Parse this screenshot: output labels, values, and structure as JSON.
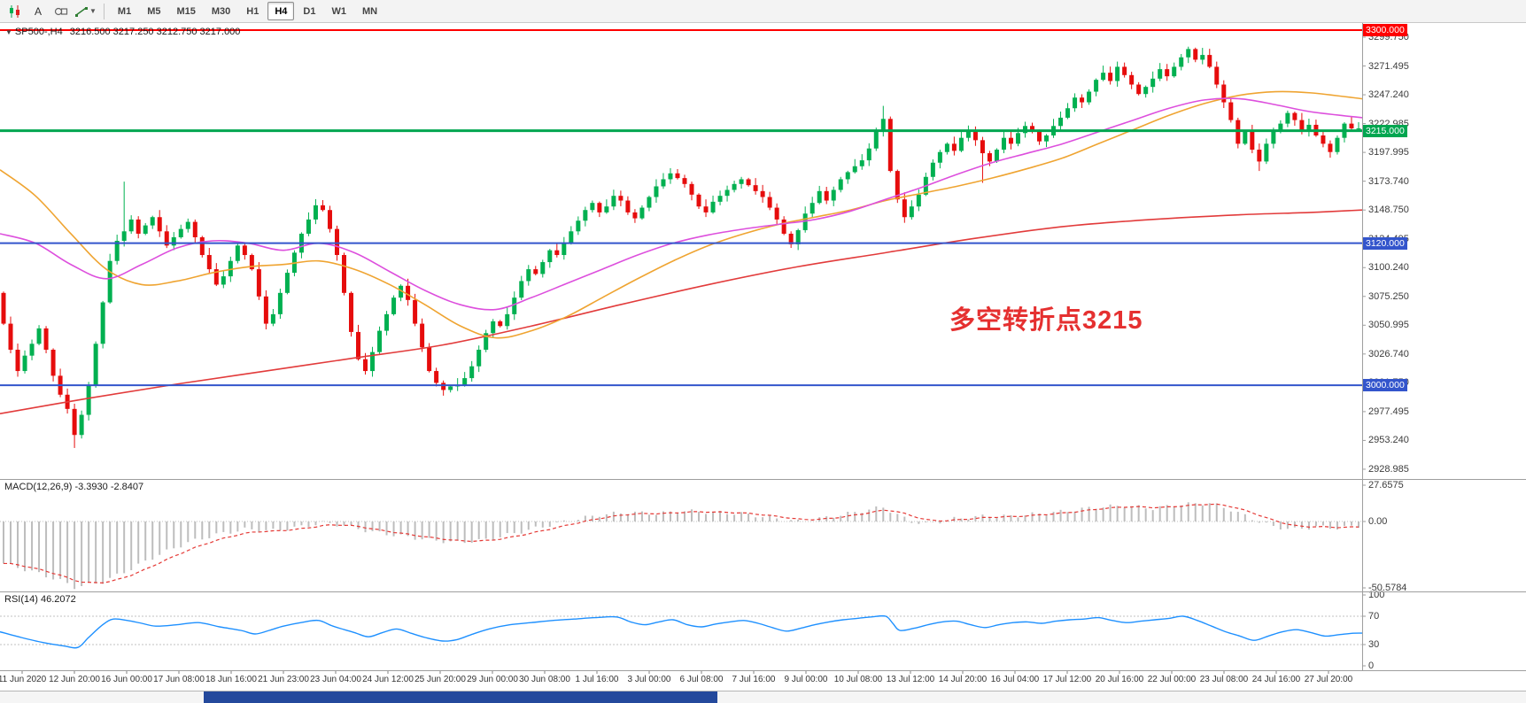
{
  "toolbar": {
    "text_tool_label": "A",
    "timeframes": [
      {
        "label": "M1",
        "active": false
      },
      {
        "label": "M5",
        "active": false
      },
      {
        "label": "M15",
        "active": false
      },
      {
        "label": "M30",
        "active": false
      },
      {
        "label": "H1",
        "active": false
      },
      {
        "label": "H4",
        "active": true
      },
      {
        "label": "D1",
        "active": false
      },
      {
        "label": "W1",
        "active": false
      },
      {
        "label": "MN",
        "active": false
      }
    ]
  },
  "chart": {
    "symbol": "SP500-,H4",
    "ohlc_text": "3216.500 3217.250 3212.750 3217.000",
    "annotation": "多空转折点3215",
    "hlines": [
      {
        "price": 3300,
        "label": "3300.000",
        "color": "#ff0000",
        "width": 2
      },
      {
        "price": 3215,
        "label": "3215.000",
        "color": "#00a650",
        "width": 3
      },
      {
        "price": 3120,
        "label": "3120.000",
        "color": "#3355cc",
        "width": 2
      },
      {
        "price": 3000,
        "label": "3000.000",
        "color": "#3355cc",
        "width": 2
      }
    ],
    "price_labels": [
      "3299.750",
      "3271.495",
      "3247.240",
      "3222.985",
      "3197.995",
      "3173.740",
      "3148.750",
      "3124.495",
      "3100.240",
      "3075.250",
      "3050.995",
      "3026.740",
      "3001.750",
      "2977.495",
      "2953.240",
      "2928.985"
    ],
    "time_labels": [
      "11 Jun 2020",
      "12 Jun 20:00",
      "16 Jun 00:00",
      "17 Jun 08:00",
      "18 Jun 16:00",
      "21 Jun 23:00",
      "23 Jun 04:00",
      "24 Jun 12:00",
      "25 Jun 20:00",
      "29 Jun 00:00",
      "30 Jun 08:00",
      "1 Jul 16:00",
      "3 Jul 00:00",
      "6 Jul 08:00",
      "7 Jul 16:00",
      "9 Jul 00:00",
      "10 Jul 08:00",
      "13 Jul 12:00",
      "14 Jul 20:00",
      "16 Jul 04:00",
      "17 Jul 12:00",
      "20 Jul 16:00",
      "22 Jul 00:00",
      "23 Jul 08:00",
      "24 Jul 16:00",
      "27 Jul 20:00"
    ]
  },
  "macd": {
    "header": "MACD(12,26,9) -3.3930 -2.8407",
    "labels": [
      "27.6575",
      "0.00",
      "-50.5784"
    ],
    "range": {
      "max": 27.6575,
      "min": -50.5784
    },
    "current_main": -3.393,
    "current_signal": -2.8407
  },
  "rsi": {
    "header": "RSI(14) 46.2072",
    "labels": [
      "100",
      "70",
      "30",
      "0"
    ],
    "levels": [
      70,
      30
    ],
    "current": 46.2072
  },
  "chart_data": {
    "type": "candlestick",
    "symbol": "SP500-",
    "timeframe": "H4",
    "current_bar": {
      "open": 3216.5,
      "high": 3217.25,
      "low": 3212.75,
      "close": 3217.0
    },
    "y_axis": {
      "min": 2928.985,
      "max": 3299.75
    },
    "first_open": 3078,
    "closes": [
      3052,
      3030,
      3012,
      3025,
      3035,
      3048,
      3030,
      3008,
      2992,
      2980,
      2958,
      2975,
      3000,
      3035,
      3070,
      3105,
      3122,
      3130,
      3140,
      3128,
      3135,
      3142,
      3130,
      3118,
      3125,
      3132,
      3138,
      3125,
      3110,
      3098,
      3085,
      3092,
      3105,
      3118,
      3110,
      3098,
      3075,
      3052,
      3060,
      3078,
      3095,
      3112,
      3128,
      3140,
      3152,
      3148,
      3132,
      3110,
      3078,
      3045,
      3022,
      3012,
      3028,
      3046,
      3060,
      3074,
      3084,
      3072,
      3052,
      3032,
      3012,
      3002,
      2996,
      2999,
      3000,
      3006,
      3016,
      3030,
      3044,
      3054,
      3050,
      3060,
      3074,
      3088,
      3098,
      3094,
      3104,
      3114,
      3110,
      3120,
      3130,
      3139,
      3148,
      3154,
      3146,
      3151,
      3160,
      3156,
      3146,
      3141,
      3150,
      3159,
      3168,
      3174,
      3179,
      3175,
      3170,
      3161,
      3151,
      3146,
      3155,
      3160,
      3165,
      3170,
      3174,
      3169,
      3164,
      3159,
      3150,
      3140,
      3128,
      3119,
      3131,
      3145,
      3154,
      3164,
      3156,
      3165,
      3174,
      3180,
      3185,
      3190,
      3200,
      3214,
      3225,
      3181,
      3157,
      3142,
      3151,
      3161,
      3176,
      3188,
      3197,
      3204,
      3198,
      3209,
      3215,
      3207,
      3196,
      3189,
      3199,
      3209,
      3204,
      3213,
      3219,
      3214,
      3206,
      3211,
      3219,
      3226,
      3234,
      3243,
      3239,
      3248,
      3258,
      3264,
      3257,
      3269,
      3262,
      3254,
      3246,
      3252,
      3259,
      3267,
      3261,
      3269,
      3277,
      3284,
      3275,
      3279,
      3269,
      3254,
      3239,
      3224,
      3204,
      3214,
      3199,
      3189,
      3204,
      3214,
      3221,
      3230,
      3224,
      3214,
      3220,
      3211,
      3204,
      3197,
      3209,
      3221,
      3217,
      3217
    ],
    "wick_overrides": {
      "10": {
        "low": 2947
      },
      "17": {
        "high": 3172
      },
      "124": {
        "high": 3236
      },
      "138": {
        "low": 3171
      },
      "177": {
        "low": 3181
      }
    },
    "ma": {
      "orange": [
        [
          0,
          3182
        ],
        [
          40,
          3160
        ],
        [
          80,
          3128
        ],
        [
          120,
          3098
        ],
        [
          160,
          3085
        ],
        [
          200,
          3088
        ],
        [
          240,
          3095
        ],
        [
          280,
          3100
        ],
        [
          320,
          3102
        ],
        [
          360,
          3105
        ],
        [
          400,
          3098
        ],
        [
          440,
          3085
        ],
        [
          480,
          3068
        ],
        [
          520,
          3050
        ],
        [
          560,
          3040
        ],
        [
          600,
          3046
        ],
        [
          640,
          3058
        ],
        [
          680,
          3074
        ],
        [
          720,
          3090
        ],
        [
          760,
          3105
        ],
        [
          800,
          3118
        ],
        [
          840,
          3128
        ],
        [
          880,
          3136
        ],
        [
          920,
          3142
        ],
        [
          960,
          3148
        ],
        [
          1000,
          3156
        ],
        [
          1040,
          3162
        ],
        [
          1080,
          3168
        ],
        [
          1120,
          3175
        ],
        [
          1160,
          3183
        ],
        [
          1200,
          3192
        ],
        [
          1240,
          3204
        ],
        [
          1280,
          3216
        ],
        [
          1320,
          3228
        ],
        [
          1360,
          3238
        ],
        [
          1400,
          3245
        ],
        [
          1440,
          3248
        ],
        [
          1480,
          3247
        ],
        [
          1538,
          3242
        ]
      ],
      "magenta": [
        [
          0,
          3128
        ],
        [
          40,
          3120
        ],
        [
          80,
          3102
        ],
        [
          120,
          3090
        ],
        [
          160,
          3102
        ],
        [
          200,
          3116
        ],
        [
          240,
          3122
        ],
        [
          280,
          3120
        ],
        [
          320,
          3114
        ],
        [
          360,
          3120
        ],
        [
          400,
          3112
        ],
        [
          440,
          3096
        ],
        [
          480,
          3080
        ],
        [
          520,
          3068
        ],
        [
          560,
          3064
        ],
        [
          600,
          3074
        ],
        [
          640,
          3086
        ],
        [
          680,
          3098
        ],
        [
          720,
          3110
        ],
        [
          760,
          3120
        ],
        [
          800,
          3127
        ],
        [
          840,
          3132
        ],
        [
          880,
          3136
        ],
        [
          920,
          3140
        ],
        [
          960,
          3147
        ],
        [
          1000,
          3157
        ],
        [
          1040,
          3167
        ],
        [
          1080,
          3178
        ],
        [
          1120,
          3188
        ],
        [
          1160,
          3196
        ],
        [
          1200,
          3204
        ],
        [
          1240,
          3214
        ],
        [
          1280,
          3224
        ],
        [
          1320,
          3234
        ],
        [
          1360,
          3241
        ],
        [
          1400,
          3242
        ],
        [
          1440,
          3237
        ],
        [
          1480,
          3231
        ],
        [
          1538,
          3226
        ]
      ],
      "red": [
        [
          0,
          2976
        ],
        [
          100,
          2989
        ],
        [
          200,
          3001
        ],
        [
          300,
          3012
        ],
        [
          400,
          3023
        ],
        [
          500,
          3034
        ],
        [
          600,
          3050
        ],
        [
          700,
          3068
        ],
        [
          800,
          3085
        ],
        [
          900,
          3100
        ],
        [
          1000,
          3112
        ],
        [
          1100,
          3124
        ],
        [
          1200,
          3134
        ],
        [
          1300,
          3140
        ],
        [
          1400,
          3144
        ],
        [
          1480,
          3146
        ],
        [
          1538,
          3148
        ]
      ]
    },
    "macd_anchors": [
      [
        0,
        -32
      ],
      [
        4,
        -38
      ],
      [
        8,
        -45
      ],
      [
        10,
        -50
      ],
      [
        14,
        -46
      ],
      [
        18,
        -36
      ],
      [
        22,
        -25
      ],
      [
        26,
        -16
      ],
      [
        30,
        -10
      ],
      [
        34,
        -6
      ],
      [
        38,
        -7
      ],
      [
        42,
        -4
      ],
      [
        45,
        -1
      ],
      [
        48,
        -3
      ],
      [
        52,
        -8
      ],
      [
        56,
        -11
      ],
      [
        60,
        -14
      ],
      [
        64,
        -16
      ],
      [
        68,
        -14
      ],
      [
        72,
        -9
      ],
      [
        76,
        -4
      ],
      [
        80,
        1
      ],
      [
        84,
        5
      ],
      [
        88,
        7
      ],
      [
        92,
        6
      ],
      [
        96,
        8
      ],
      [
        100,
        7
      ],
      [
        104,
        6
      ],
      [
        108,
        3
      ],
      [
        112,
        0
      ],
      [
        116,
        3
      ],
      [
        120,
        7
      ],
      [
        124,
        11
      ],
      [
        126,
        5
      ],
      [
        128,
        0
      ],
      [
        130,
        -2
      ],
      [
        134,
        2
      ],
      [
        138,
        4
      ],
      [
        142,
        4
      ],
      [
        146,
        6
      ],
      [
        150,
        8
      ],
      [
        154,
        11
      ],
      [
        158,
        12
      ],
      [
        162,
        10
      ],
      [
        166,
        13
      ],
      [
        170,
        14
      ],
      [
        173,
        9
      ],
      [
        176,
        2
      ],
      [
        179,
        -4
      ],
      [
        182,
        -6
      ],
      [
        185,
        -4
      ],
      [
        188,
        -5
      ],
      [
        191,
        -3.4
      ]
    ],
    "rsi_anchors": [
      [
        0,
        48
      ],
      [
        24,
        40
      ],
      [
        48,
        33
      ],
      [
        72,
        28
      ],
      [
        88,
        26
      ],
      [
        100,
        40
      ],
      [
        116,
        58
      ],
      [
        128,
        66
      ],
      [
        144,
        64
      ],
      [
        160,
        60
      ],
      [
        176,
        56
      ],
      [
        200,
        58
      ],
      [
        224,
        61
      ],
      [
        248,
        55
      ],
      [
        272,
        50
      ],
      [
        288,
        45
      ],
      [
        304,
        50
      ],
      [
        320,
        56
      ],
      [
        344,
        62
      ],
      [
        360,
        64
      ],
      [
        376,
        56
      ],
      [
        400,
        47
      ],
      [
        416,
        41
      ],
      [
        432,
        47
      ],
      [
        448,
        52
      ],
      [
        464,
        46
      ],
      [
        480,
        40
      ],
      [
        500,
        35
      ],
      [
        516,
        37
      ],
      [
        532,
        44
      ],
      [
        552,
        52
      ],
      [
        576,
        58
      ],
      [
        600,
        61
      ],
      [
        624,
        64
      ],
      [
        648,
        66
      ],
      [
        672,
        68
      ],
      [
        696,
        69
      ],
      [
        712,
        62
      ],
      [
        728,
        58
      ],
      [
        744,
        62
      ],
      [
        760,
        65
      ],
      [
        776,
        58
      ],
      [
        792,
        55
      ],
      [
        808,
        59
      ],
      [
        824,
        62
      ],
      [
        840,
        64
      ],
      [
        856,
        60
      ],
      [
        872,
        54
      ],
      [
        888,
        49
      ],
      [
        904,
        53
      ],
      [
        920,
        58
      ],
      [
        936,
        62
      ],
      [
        952,
        65
      ],
      [
        968,
        67
      ],
      [
        984,
        69
      ],
      [
        1000,
        70
      ],
      [
        1008,
        60
      ],
      [
        1016,
        50
      ],
      [
        1032,
        53
      ],
      [
        1048,
        58
      ],
      [
        1064,
        62
      ],
      [
        1080,
        63
      ],
      [
        1096,
        58
      ],
      [
        1112,
        54
      ],
      [
        1128,
        58
      ],
      [
        1144,
        61
      ],
      [
        1160,
        62
      ],
      [
        1176,
        60
      ],
      [
        1192,
        63
      ],
      [
        1208,
        65
      ],
      [
        1224,
        66
      ],
      [
        1240,
        68
      ],
      [
        1256,
        64
      ],
      [
        1272,
        61
      ],
      [
        1288,
        63
      ],
      [
        1304,
        65
      ],
      [
        1320,
        67
      ],
      [
        1336,
        70
      ],
      [
        1352,
        64
      ],
      [
        1368,
        56
      ],
      [
        1384,
        48
      ],
      [
        1400,
        42
      ],
      [
        1416,
        36
      ],
      [
        1432,
        42
      ],
      [
        1448,
        48
      ],
      [
        1464,
        51
      ],
      [
        1480,
        47
      ],
      [
        1496,
        42
      ],
      [
        1512,
        44
      ],
      [
        1528,
        46
      ],
      [
        1538,
        46.2
      ]
    ]
  },
  "colors": {
    "bull": "#00b050",
    "bear": "#e60c0c",
    "ma_orange": "#efa431",
    "ma_magenta": "#dd4fdd",
    "ma_red": "#e23b3b",
    "macd_hist": "#bdbdbd",
    "macd_signal": "#e53935",
    "rsi": "#1e90ff",
    "level_dotted": "#c0c0c0",
    "annotation": "#e53030",
    "taskbar_active": "#24499c"
  }
}
